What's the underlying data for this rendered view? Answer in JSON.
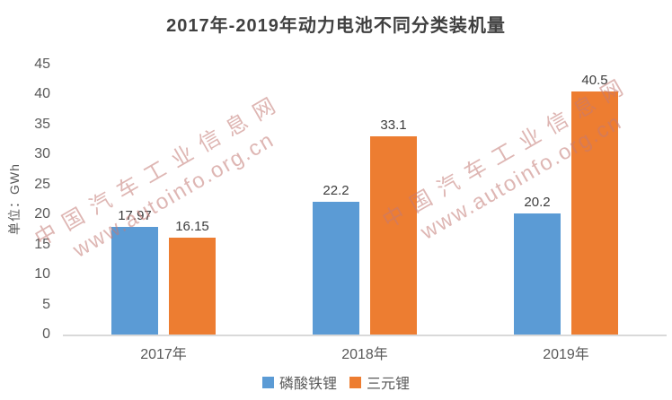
{
  "chart_data": {
    "type": "bar",
    "title": "2017年-2019年动力电池不同分类装机量",
    "ylabel": "单位：GWh",
    "xlabel": "",
    "categories": [
      "2017年",
      "2018年",
      "2019年"
    ],
    "series": [
      {
        "name": "磷酸铁锂",
        "slug": "lfp",
        "color": "#5B9BD5",
        "values": [
          17.97,
          22.2,
          20.2
        ]
      },
      {
        "name": "三元锂",
        "slug": "ternary",
        "color": "#ED7D31",
        "values": [
          16.15,
          33.1,
          40.5
        ]
      }
    ],
    "ylim": [
      0,
      45
    ],
    "yticks": [
      0,
      5,
      10,
      15,
      20,
      25,
      30,
      35,
      40,
      45
    ],
    "grid": false,
    "legend_position": "bottom",
    "value_labels_shown": true
  },
  "watermark": {
    "line1": "中国汽车工业信息网",
    "line2": "www.autoinfo.org.cn"
  },
  "colors": {
    "title_text": "#404040",
    "axis_text": "#595959",
    "value_label_text": "#3d3d3d",
    "baseline": "#D9D9D9",
    "watermark": "#C37A75"
  }
}
